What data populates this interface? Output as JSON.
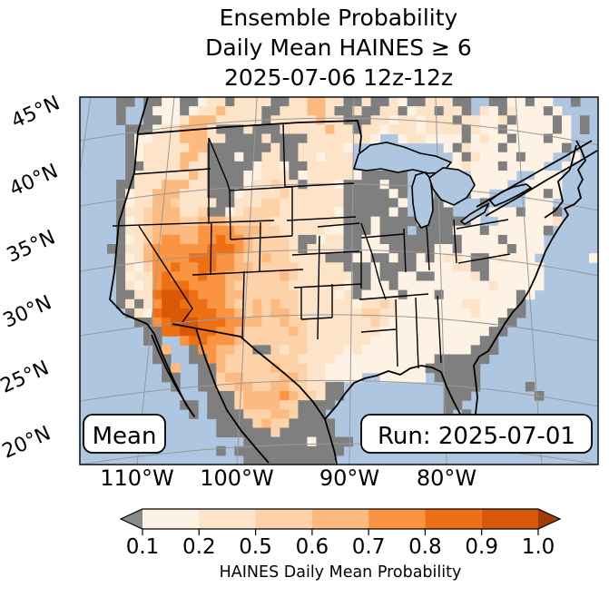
{
  "figure": {
    "title_lines": [
      "Ensemble Probability",
      "Daily Mean HAINES ≥ 6",
      "2025-07-06 12z-12z"
    ]
  },
  "map": {
    "mean_box_label": "Mean",
    "run_box_label": "Run: 2025-07-01",
    "lat_tick_labels": [
      "45°N",
      "40°N",
      "35°N",
      "30°N",
      "25°N",
      "20°N"
    ],
    "lon_tick_labels": [
      "110°W",
      "100°W",
      "90°W",
      "80°W"
    ],
    "colors": {
      "ocean": "#aec6e0",
      "below_threshold_gray": "#7f7f7f",
      "coastline": "#000000",
      "graticule": "#999999"
    },
    "raster": {
      "cols": 57,
      "rows": 40,
      "palette": {
        ".": "#aec6e0",
        "g": "#7f7f7f",
        "0": "#fdf2e3",
        "1": "#fde4c9",
        "2": "#fdd2a9",
        "3": "#fdba80",
        "4": "#fa9442",
        "5": "#ee7014",
        "6": "#d85808"
      },
      "rows_data": [
        "....gg.gg00gg011g1111gg113311gg1gg10gg111gg..gg00g00..g..",
        "....g..g000g01131111gg111331gg1gg11g011g11g.10g1000g0....",
        "....g..gg00133311111g11111311ggg110110111g11001g0000g0.g.",
        ".....ggg0113331ggg1ggg11111311g11011101111g100g00000g0.g.",
        ".....g0011133311gggg1gggg11111110..0110000g0100g000g00...",
        ".....g01111133ggggggg1gg111110..........0g1000g000000g...",
        ".....g01111331ggg0gg11gg110111...........0g10000g000..0..",
        ".....gg1111311ggggg0110gg11111....gg..g.001000g0000..0...",
        ".....g11111131gggg00111g0111110ggggg.......00000..000....",
        "....gg11133311gggg011211g1110gggg0gg......g0000..0000....",
        "....g011333111ggg011112111111ggggg0g...g..g00....00g0....",
        "....g0113321111gg111221111111gggggg0..gg0...g....000.....",
        "....g112333112gg0122221111110ggggg0g..ggg....000g000g....",
        "....g012333223332222211111111ggg0gggg.ggggg0..0000001....",
        "....g1123333344443332211111 00ggg0ggg.gggg000g000000g.....",
        "....g0123443344544322221gg011gg00ggggggggg0000g0000......",
        "...gg1134444445554322221g1111gg000ggggg00g00000g000......",
        "....g013444455544322322 1111ggg00gg0gg0g0110gg01000......",
        "....g102445445544332222211111ggg0gggg000011gg000000......",
        "....g0114544454433222232111111gg0gg00gg00001g000000......",
        "....g1014555444432222221111110gg00g000000000010 0000......",
        "....gg115666544433222222111101g0000g000g00000000g0.......",
        "....g1g14665554432232322111111011210000000110000g........",
        ".....g1056665554432323321111111221100000000 1000gg........",
        "......gg45666555443322322111111121000000000000gg.........",
        ".......gg556655443222223211111111000000000000gg..........",
        ".......gg..4554443222222211111110000000000 00gg...........",
        "........g3..g443322gg21221111010000000000 00ggg...........",
        "........gg..gg4322222222111100000000000gggggg............",
        ".........g3..gg32222232221100000000000gggggg.............",
        ".........gg..gg23322223321100 00..00000.ggggg.............",
        "..........g..gg223322332211gg...........gggg.....g.......",
        "..............ggg2333343221gg...........ggg.......g......",
        "...........gg.ggg2333322gggg............gg...............",
        "............g.gggg222332ggg.............g.g..............",
        "...............gggg2322ggggg............g.g..............",
        "...............gggggg2gggggg.............................",
        "..................ggggggg0gggg...........................",
        "...............g.gggggggggggg............................",
        "..................gggggggggg............................."
      ]
    }
  },
  "colorbar": {
    "tick_labels": [
      "0.1",
      "0.2",
      "0.5",
      "0.6",
      "0.7",
      "0.8",
      "0.9",
      "1.0"
    ],
    "bin_colors": [
      "#fdf2e3",
      "#fde4c9",
      "#fdd2a9",
      "#fdba80",
      "#fa9442",
      "#ee7014",
      "#d85808"
    ],
    "under_arrow_color": "#8a8a8a",
    "over_arrow_color": "#a03c05",
    "axis_label": "HAINES Daily Mean Probability"
  },
  "chart_data": {
    "type": "heatmap",
    "title": "Ensemble Probability Daily Mean HAINES ≥ 6 2025-07-06 12z-12z",
    "statistic": "Mean",
    "run_date": "Run: 2025-07-01",
    "colorbar_label": "HAINES Daily Mean Probability",
    "colorbar_bounds": [
      0.1,
      0.2,
      0.5,
      0.6,
      0.7,
      0.8,
      0.9,
      1.0
    ],
    "lat_ticks_deg_n": [
      45,
      40,
      35,
      30,
      25,
      20
    ],
    "lon_ticks_deg_w": [
      110,
      100,
      90,
      80
    ],
    "legend_position": "bottom",
    "notes": "Probability raster encoded in map.raster.rows_data; '.'=water, 'g'=below 0.1, digits 0-6 = probability bins from 0.1-0.2 up to 0.9-1.0"
  }
}
